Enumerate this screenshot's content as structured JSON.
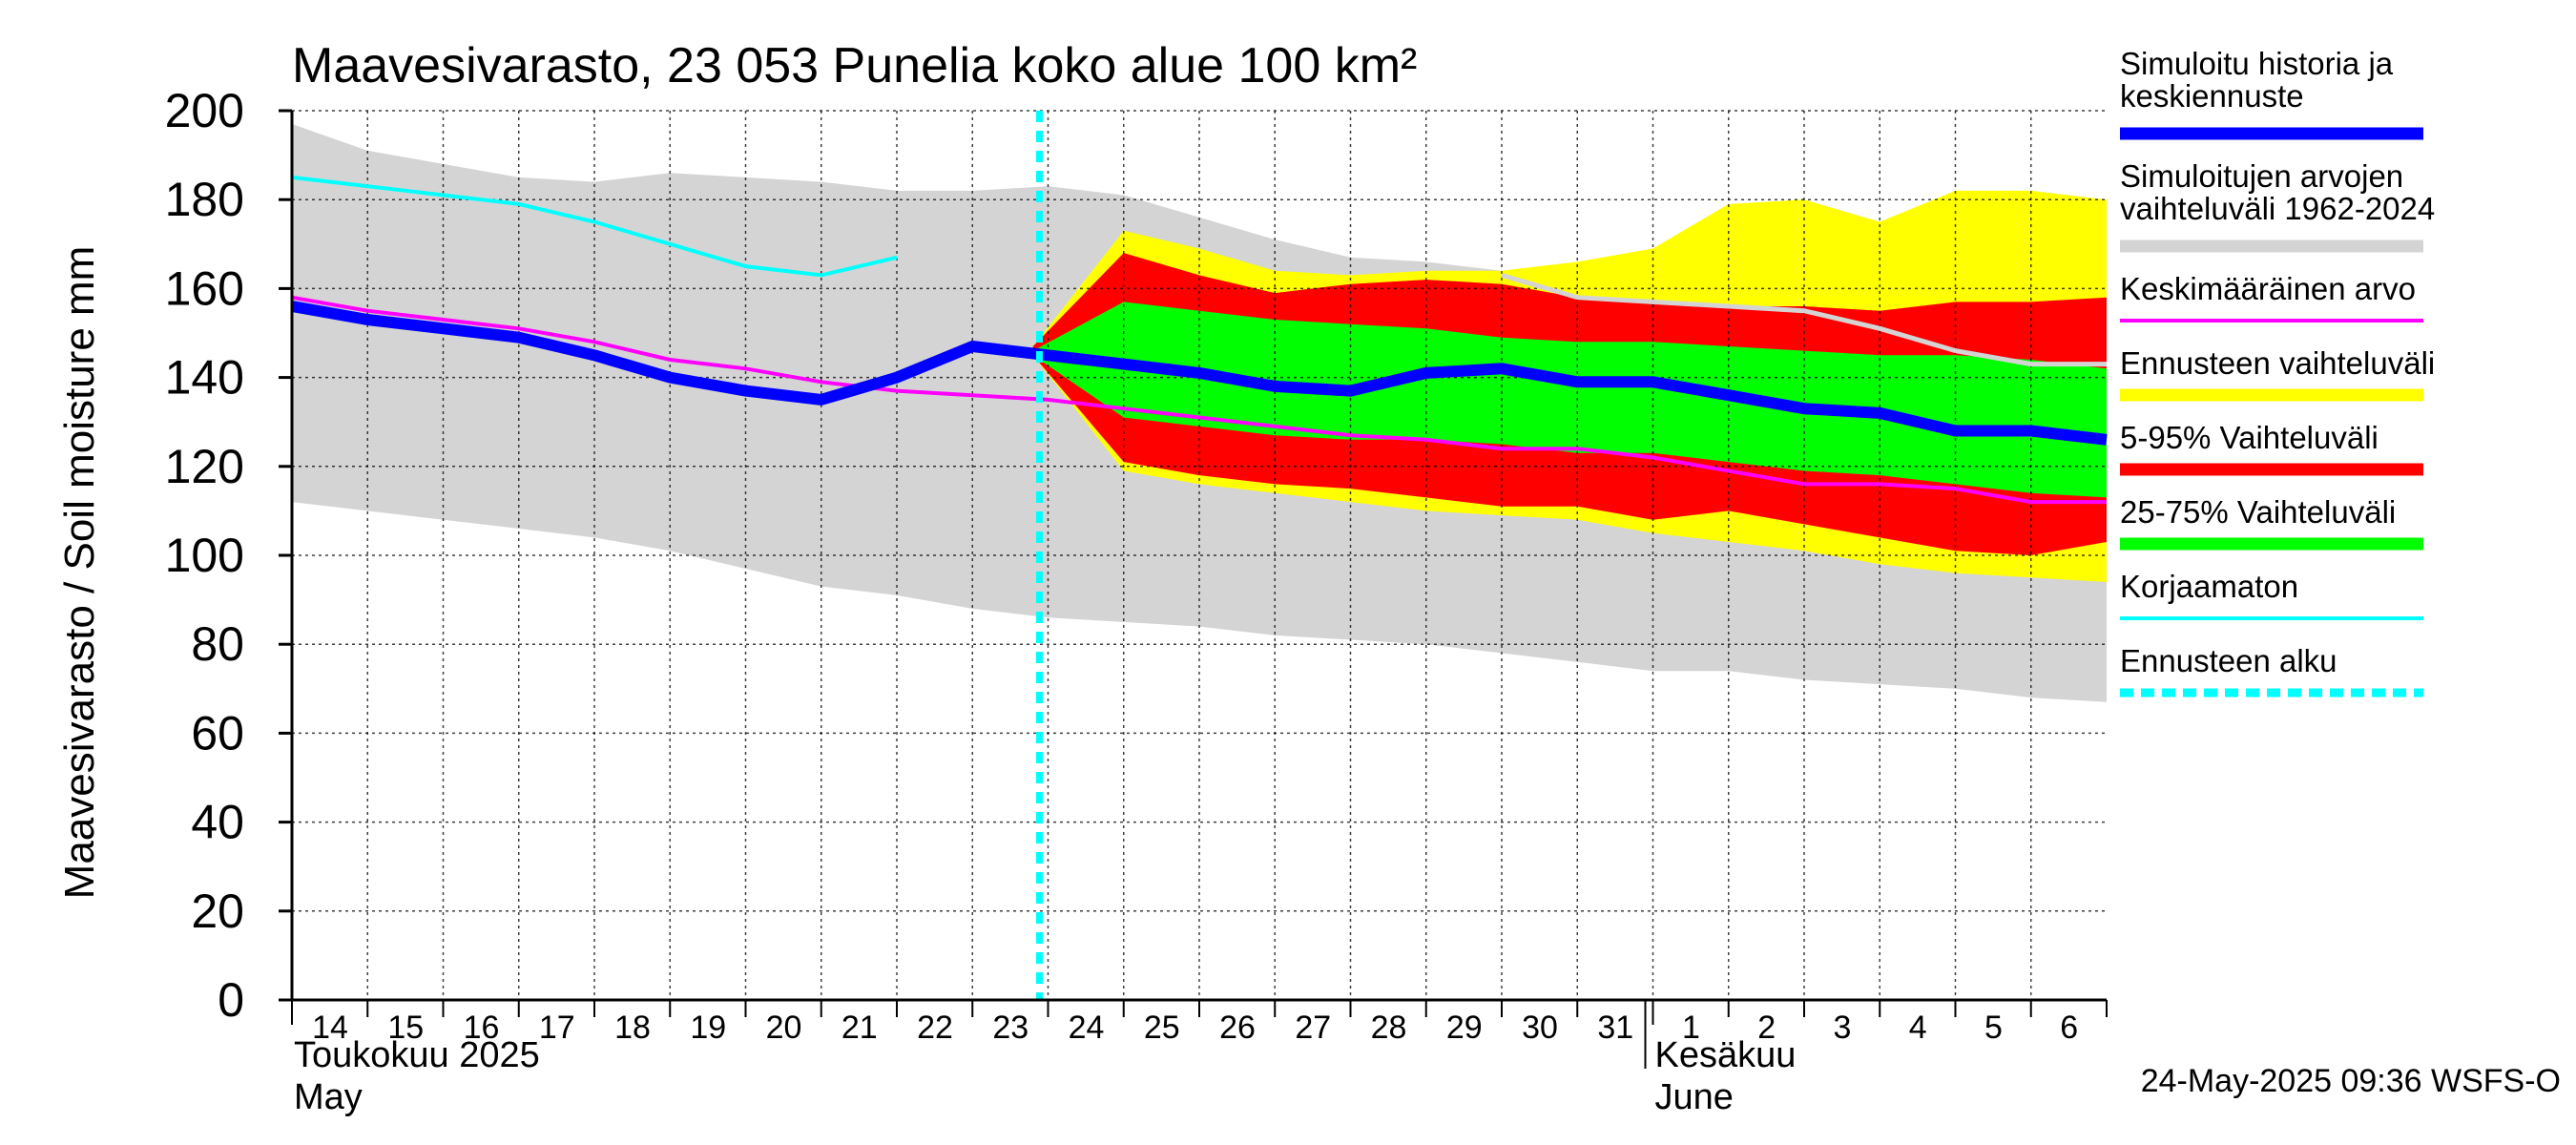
{
  "chart_data": {
    "type": "area",
    "title": "Maavesivarasto, 23 053 Punelia koko alue 100 km²",
    "ylabel": "Maavesivarasto / Soil moisture   mm",
    "ylim": [
      0,
      200
    ],
    "yticks": [
      0,
      20,
      40,
      60,
      80,
      100,
      120,
      140,
      160,
      180,
      200
    ],
    "x_start_day": 14,
    "x_end_day": 38,
    "day_labels": [
      "14",
      "15",
      "16",
      "17",
      "18",
      "19",
      "20",
      "21",
      "22",
      "23",
      "24",
      "25",
      "26",
      "27",
      "28",
      "29",
      "30",
      "31",
      "1",
      "2",
      "3",
      "4",
      "5",
      "6"
    ],
    "month_labels": [
      {
        "line1": "Toukokuu  2025",
        "line2": "May",
        "at_day": 14
      },
      {
        "line1": "Kesäkuu",
        "line2": "June",
        "at_day": 32
      }
    ],
    "forecast_start_day": 24,
    "timestamp": "24-May-2025 09:36 WSFS-O",
    "colors": {
      "hist_range": "#d4d4d4",
      "ennuste_range": "#ffff00",
      "p5_95": "#ff0000",
      "p25_75": "#00ff00",
      "median": "#0000ff",
      "mean": "#ff00ff",
      "uncorrected": "#00ffff",
      "forecast_start": "#00ffff",
      "mean_future": "#d4d4d4"
    },
    "hist_range": {
      "days": [
        14,
        15,
        16,
        17,
        18,
        19,
        20,
        21,
        22,
        23,
        24,
        25,
        26,
        27,
        28,
        29,
        30,
        31,
        32,
        33,
        34,
        35,
        36,
        37,
        38
      ],
      "upper": [
        197,
        191,
        188,
        185,
        184,
        186,
        185,
        184,
        182,
        182,
        183,
        181,
        176,
        171,
        167,
        166,
        164,
        161,
        158,
        155,
        150,
        145,
        140,
        135,
        130
      ],
      "lower": [
        112,
        110,
        108,
        106,
        104,
        101,
        97,
        93,
        91,
        88,
        86,
        85,
        84,
        82,
        81,
        80,
        78,
        76,
        74,
        74,
        72,
        71,
        70,
        68,
        67
      ]
    },
    "ennuste_range": {
      "days": [
        23.8,
        25,
        26,
        27,
        28,
        29,
        30,
        31,
        32,
        33,
        34,
        35,
        36,
        37,
        38
      ],
      "upper": [
        147,
        173,
        169,
        164,
        163,
        164,
        164,
        166,
        169,
        179,
        180,
        175,
        182,
        182,
        180
      ],
      "lower": [
        145,
        119,
        116,
        114,
        112,
        110,
        109,
        108,
        105,
        103,
        101,
        98,
        96,
        95,
        94
      ]
    },
    "p5_95": {
      "days": [
        23.8,
        25,
        26,
        27,
        28,
        29,
        30,
        31,
        32,
        33,
        34,
        35,
        36,
        37,
        38
      ],
      "upper": [
        147,
        168,
        163,
        159,
        161,
        162,
        161,
        158,
        157,
        156,
        156,
        155,
        157,
        157,
        158
      ],
      "lower": [
        145,
        121,
        118,
        116,
        115,
        113,
        111,
        111,
        108,
        110,
        107,
        104,
        101,
        100,
        103
      ]
    },
    "p25_75": {
      "days": [
        23.8,
        25,
        26,
        27,
        28,
        29,
        30,
        31,
        32,
        33,
        34,
        35,
        36,
        37,
        38
      ],
      "upper": [
        146,
        157,
        155,
        153,
        152,
        151,
        149,
        148,
        148,
        147,
        146,
        145,
        145,
        144,
        142
      ],
      "lower": [
        145,
        131,
        129,
        127,
        126,
        126,
        125,
        123,
        123,
        121,
        119,
        118,
        116,
        114,
        113
      ]
    },
    "median": {
      "days": [
        14,
        15,
        16,
        17,
        18,
        19,
        20,
        21,
        22,
        23,
        24,
        25,
        26,
        27,
        28,
        29,
        30,
        31,
        32,
        33,
        34,
        35,
        36,
        37,
        38
      ],
      "values": [
        156,
        153,
        151,
        149,
        145,
        140,
        137,
        135,
        140,
        147,
        145,
        143,
        141,
        138,
        137,
        141,
        142,
        139,
        139,
        136,
        133,
        132,
        128,
        128,
        126
      ]
    },
    "mean": {
      "days": [
        14,
        15,
        16,
        17,
        18,
        19,
        20,
        21,
        22,
        23,
        24,
        25,
        26,
        27,
        28,
        29,
        30,
        31,
        32,
        33,
        34,
        35,
        36,
        37,
        38
      ],
      "values": [
        158,
        155,
        153,
        151,
        148,
        144,
        142,
        139,
        137,
        136,
        135,
        133,
        131,
        129,
        127,
        126,
        124,
        124,
        122,
        119,
        116,
        116,
        115,
        112,
        112
      ]
    },
    "mean_future": {
      "days": [
        30,
        31,
        32,
        33,
        34,
        35,
        36,
        37,
        38
      ],
      "values": [
        163,
        158,
        157,
        156,
        155,
        151,
        146,
        143,
        143
      ]
    },
    "uncorrected": {
      "days": [
        14,
        15,
        16,
        17,
        18,
        19,
        20,
        21,
        22
      ],
      "values": [
        185,
        183,
        181,
        179,
        175,
        170,
        165,
        163,
        167
      ]
    },
    "legend": [
      {
        "label": "Simuloitu historia ja",
        "label2": "keskiennuste",
        "color": "#0000ff",
        "style": "thick"
      },
      {
        "label": "Simuloitujen arvojen",
        "label2": "vaihteluväli 1962-2024",
        "color": "#d4d4d4",
        "style": "thick"
      },
      {
        "label": "Keskimääräinen arvo",
        "label2": "",
        "color": "#ff00ff",
        "style": "thin"
      },
      {
        "label": "Ennusteen vaihteluväli",
        "label2": "",
        "color": "#ffff00",
        "style": "thick"
      },
      {
        "label": "5-95% Vaihteluväli",
        "label2": "",
        "color": "#ff0000",
        "style": "thick"
      },
      {
        "label": "25-75% Vaihteluväli",
        "label2": "",
        "color": "#00ff00",
        "style": "thick"
      },
      {
        "label": "Korjaamaton",
        "label2": "",
        "color": "#00ffff",
        "style": "thin"
      },
      {
        "label": "Ennusteen alku",
        "label2": "",
        "color": "#00ffff",
        "style": "dashed"
      }
    ]
  }
}
